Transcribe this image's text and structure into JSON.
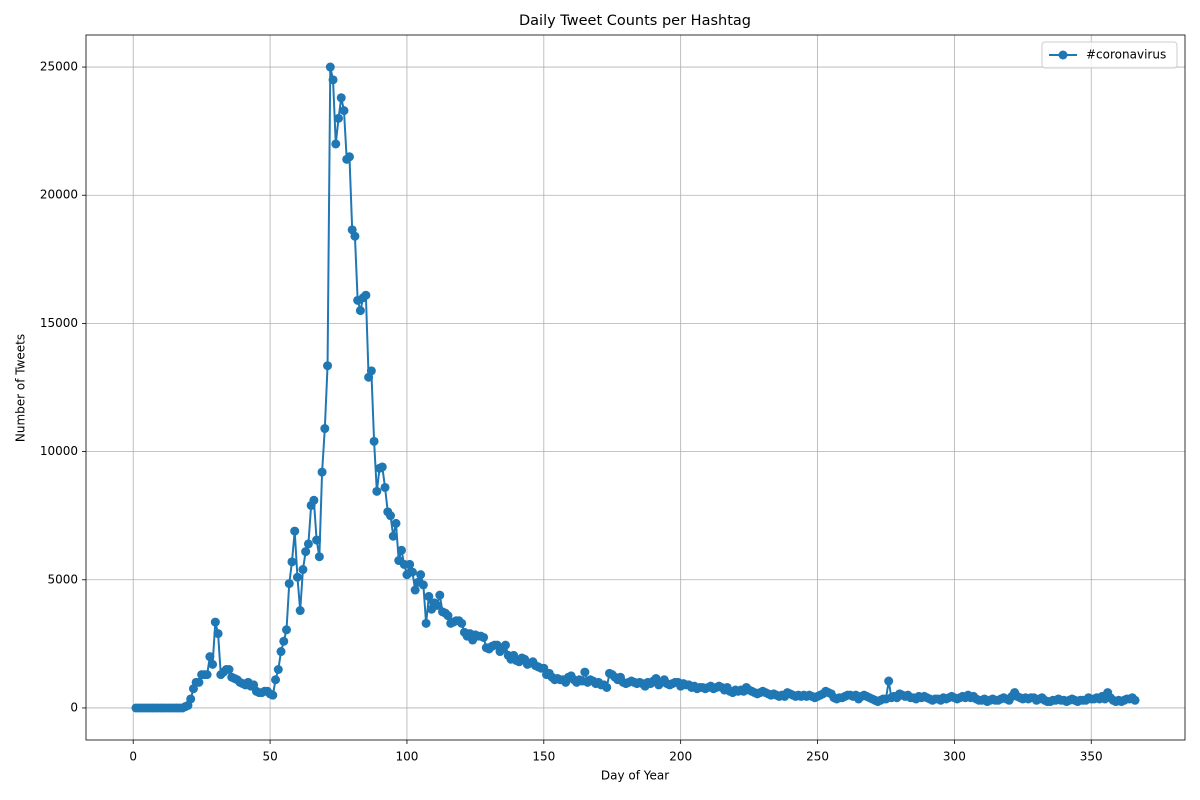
{
  "chart_data": {
    "type": "line",
    "title": "Daily Tweet Counts per Hashtag",
    "x_label": "Day of Year",
    "y_label": "Number of Tweets",
    "x": [
      1,
      2,
      3,
      4,
      5,
      6,
      7,
      8,
      9,
      10,
      11,
      12,
      13,
      14,
      15,
      16,
      17,
      18,
      19,
      20,
      21,
      22,
      23,
      24,
      25,
      26,
      27,
      28,
      29,
      30,
      31,
      32,
      33,
      34,
      35,
      36,
      37,
      38,
      39,
      40,
      41,
      42,
      43,
      44,
      45,
      46,
      47,
      48,
      49,
      50,
      51,
      52,
      53,
      54,
      55,
      56,
      57,
      58,
      59,
      60,
      61,
      62,
      63,
      64,
      65,
      66,
      67,
      68,
      69,
      70,
      71,
      72,
      73,
      74,
      75,
      76,
      77,
      78,
      79,
      80,
      81,
      82,
      83,
      84,
      85,
      86,
      87,
      88,
      89,
      90,
      91,
      92,
      93,
      94,
      95,
      96,
      97,
      98,
      99,
      100,
      101,
      102,
      103,
      104,
      105,
      106,
      107,
      108,
      109,
      110,
      111,
      112,
      113,
      114,
      115,
      116,
      117,
      118,
      119,
      120,
      121,
      122,
      123,
      124,
      125,
      126,
      127,
      128,
      129,
      130,
      131,
      132,
      133,
      134,
      135,
      136,
      137,
      138,
      139,
      140,
      141,
      142,
      143,
      144,
      145,
      146,
      147,
      148,
      149,
      150,
      151,
      152,
      153,
      154,
      155,
      156,
      157,
      158,
      159,
      160,
      161,
      162,
      163,
      164,
      165,
      166,
      167,
      168,
      169,
      170,
      171,
      172,
      173,
      174,
      175,
      176,
      177,
      178,
      179,
      180,
      181,
      182,
      183,
      184,
      185,
      186,
      187,
      188,
      189,
      190,
      191,
      192,
      193,
      194,
      195,
      196,
      197,
      198,
      199,
      200,
      201,
      202,
      203,
      204,
      205,
      206,
      207,
      208,
      209,
      210,
      211,
      212,
      213,
      214,
      215,
      216,
      217,
      218,
      219,
      220,
      221,
      222,
      223,
      224,
      225,
      226,
      227,
      228,
      229,
      230,
      231,
      232,
      233,
      234,
      235,
      236,
      237,
      238,
      239,
      240,
      241,
      242,
      243,
      244,
      245,
      246,
      247,
      248,
      249,
      250,
      251,
      252,
      253,
      254,
      255,
      256,
      257,
      258,
      259,
      260,
      261,
      262,
      263,
      264,
      265,
      266,
      267,
      268,
      269,
      270,
      271,
      272,
      273,
      274,
      275,
      276,
      277,
      278,
      279,
      280,
      281,
      282,
      283,
      284,
      285,
      286,
      287,
      288,
      289,
      290,
      291,
      292,
      293,
      294,
      295,
      296,
      297,
      298,
      299,
      300,
      301,
      302,
      303,
      304,
      305,
      306,
      307,
      308,
      309,
      310,
      311,
      312,
      313,
      314,
      315,
      316,
      317,
      318,
      319,
      320,
      321,
      322,
      323,
      324,
      325,
      326,
      327,
      328,
      329,
      330,
      331,
      332,
      333,
      334,
      335,
      336,
      337,
      338,
      339,
      340,
      341,
      342,
      343,
      344,
      345,
      346,
      347,
      348,
      349,
      350,
      351,
      352,
      353,
      354,
      355,
      356,
      357,
      358,
      359,
      360,
      361,
      362,
      363,
      364,
      365,
      366
    ],
    "series": [
      {
        "name": "#coronavirus",
        "color": "#1f77b4",
        "values": [
          0,
          0,
          0,
          0,
          0,
          0,
          0,
          0,
          0,
          0,
          0,
          0,
          0,
          0,
          0,
          0,
          0,
          0,
          50,
          100,
          350,
          750,
          1000,
          1000,
          1300,
          1300,
          1300,
          2000,
          1700,
          3350,
          2900,
          1300,
          1400,
          1500,
          1500,
          1200,
          1150,
          1100,
          1000,
          950,
          900,
          1000,
          850,
          900,
          650,
          600,
          600,
          650,
          650,
          550,
          500,
          1100,
          1500,
          2200,
          2600,
          3050,
          4850,
          5700,
          6900,
          5100,
          3800,
          5400,
          6100,
          6400,
          7900,
          8100,
          6550,
          5900,
          9200,
          10900,
          13350,
          25000,
          24500,
          22000,
          23000,
          23800,
          23300,
          21400,
          21500,
          18650,
          18400,
          15900,
          15500,
          16000,
          16100,
          12900,
          13150,
          10400,
          8450,
          9350,
          9400,
          8600,
          7650,
          7500,
          6700,
          7200,
          5750,
          6150,
          5600,
          5200,
          5600,
          5300,
          4600,
          4900,
          5200,
          4800,
          3300,
          4350,
          3850,
          4100,
          4000,
          4400,
          3750,
          3700,
          3600,
          3300,
          3350,
          3400,
          3400,
          3300,
          2950,
          2800,
          2900,
          2650,
          2850,
          2800,
          2800,
          2750,
          2350,
          2300,
          2400,
          2450,
          2450,
          2200,
          2300,
          2450,
          2050,
          1900,
          2050,
          1850,
          1800,
          1950,
          1900,
          1700,
          1750,
          1800,
          1650,
          1600,
          1550,
          1550,
          1300,
          1350,
          1200,
          1100,
          1150,
          1100,
          1100,
          1000,
          1200,
          1250,
          1100,
          1000,
          1100,
          1050,
          1400,
          1000,
          1100,
          1050,
          950,
          1000,
          900,
          900,
          800,
          1350,
          1300,
          1200,
          1100,
          1200,
          1000,
          950,
          1000,
          1050,
          1000,
          950,
          1000,
          950,
          850,
          1000,
          950,
          1050,
          1150,
          900,
          1000,
          1100,
          950,
          900,
          950,
          1000,
          1000,
          850,
          950,
          900,
          900,
          800,
          850,
          750,
          800,
          800,
          750,
          800,
          850,
          750,
          800,
          850,
          800,
          700,
          800,
          650,
          600,
          700,
          650,
          700,
          650,
          800,
          700,
          650,
          600,
          550,
          600,
          650,
          600,
          550,
          500,
          550,
          500,
          450,
          500,
          450,
          600,
          550,
          500,
          450,
          500,
          450,
          500,
          450,
          500,
          450,
          400,
          450,
          500,
          550,
          650,
          600,
          550,
          400,
          350,
          400,
          400,
          450,
          500,
          500,
          450,
          500,
          350,
          450,
          500,
          450,
          400,
          350,
          300,
          250,
          300,
          350,
          350,
          1050,
          400,
          450,
          400,
          550,
          500,
          450,
          500,
          400,
          400,
          350,
          450,
          400,
          450,
          400,
          350,
          300,
          350,
          350,
          300,
          400,
          350,
          400,
          450,
          400,
          350,
          400,
          450,
          400,
          500,
          400,
          450,
          350,
          300,
          300,
          350,
          250,
          300,
          350,
          300,
          300,
          350,
          400,
          350,
          300,
          450,
          600,
          450,
          400,
          350,
          400,
          350,
          400,
          400,
          300,
          350,
          400,
          300,
          250,
          250,
          300,
          300,
          350,
          300,
          300,
          250,
          300,
          350,
          300,
          250,
          300,
          300,
          300,
          400,
          350,
          350,
          400,
          350,
          450,
          350,
          600,
          400,
          300,
          250,
          300,
          250,
          300,
          350,
          350,
          400,
          300
        ]
      }
    ],
    "xlim": [
      -17.25,
      384.25
    ],
    "ylim": [
      -1250,
      26250
    ],
    "xticks": [
      0,
      50,
      100,
      150,
      200,
      250,
      300,
      350
    ],
    "yticks": [
      0,
      5000,
      10000,
      15000,
      20000,
      25000
    ],
    "grid": true,
    "legend": "upper right"
  }
}
